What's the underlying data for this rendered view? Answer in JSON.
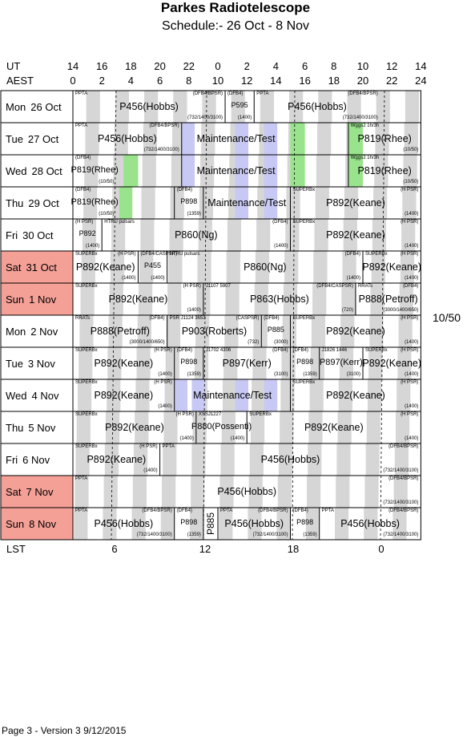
{
  "header": {
    "title": "Parkes Radiotelescope",
    "subtitle": "Schedule:- 26 Oct - 8  Nov"
  },
  "axes": {
    "ut_label": "UT",
    "aest_label": "AEST",
    "lst_label": "LST",
    "ut_ticks": [
      "14",
      "16",
      "18",
      "20",
      "22",
      "0",
      "2",
      "4",
      "6",
      "8",
      "10",
      "12",
      "14"
    ],
    "aest_ticks": [
      "0",
      "2",
      "4",
      "6",
      "8",
      "10",
      "12",
      "14",
      "16",
      "18",
      "20",
      "22",
      "24"
    ],
    "lst_ticks": [
      "6",
      "12",
      "18",
      "0"
    ]
  },
  "colors": {
    "weekend": "#f4a096",
    "maintenance": "#c8c8f5",
    "green": "#98e38c",
    "lst_stripe": "#d6d6d6"
  },
  "days": [
    {
      "name": "Mon",
      "date": "26 Oct",
      "weekend": false
    },
    {
      "name": "Tue",
      "date": "27 Oct",
      "weekend": false
    },
    {
      "name": "Wed",
      "date": "28 Oct",
      "weekend": false
    },
    {
      "name": "Thu",
      "date": "29 Oct",
      "weekend": false
    },
    {
      "name": "Fri",
      "date": "30 Oct",
      "weekend": false
    },
    {
      "name": "Sat",
      "date": "31 Oct",
      "weekend": true
    },
    {
      "name": "Sun",
      "date": "1  Nov",
      "weekend": true
    },
    {
      "name": "Mon",
      "date": "2  Nov",
      "weekend": false
    },
    {
      "name": "Tue",
      "date": "3  Nov",
      "weekend": false
    },
    {
      "name": "Wed",
      "date": "4  Nov",
      "weekend": false
    },
    {
      "name": "Thu",
      "date": "5  Nov",
      "weekend": false
    },
    {
      "name": "Fri",
      "date": "6  Nov",
      "weekend": false
    },
    {
      "name": "Sat",
      "date": "7  Nov",
      "weekend": true
    },
    {
      "name": "Sun",
      "date": "8  Nov",
      "weekend": true
    }
  ],
  "rows": [
    {
      "blocks": [
        {
          "start": 0,
          "end": 10.5,
          "label": "P456(Hobbs)",
          "tl": "PPTA",
          "br": "(732/1400/3100)",
          "tr": "(DFB4/BPSR)"
        },
        {
          "start": 10.5,
          "end": 12.5,
          "label": "P595",
          "tl": "(DFB4)",
          "br": "(1400)"
        },
        {
          "start": 12.5,
          "end": 21.2,
          "label": "P456(Hobbs)",
          "tl": "PPTA",
          "br": "(732/1400/3100)",
          "tr": "(DFB4/BPSR)"
        }
      ]
    },
    {
      "blocks": [
        {
          "start": 0,
          "end": 7.5,
          "label": "P456(Hobbs)",
          "tl": "PPTA",
          "tr": "(DFB4/BPSR)",
          "br": "(732/1400/3100)"
        },
        {
          "start": 7.5,
          "end": 15,
          "label": "Maintenance/Test"
        },
        {
          "start": 19,
          "end": 24,
          "label": "P819(Rhee)",
          "tl": "Wggs2 1h/3h",
          "br": "(10/50)"
        }
      ]
    },
    {
      "blocks": [
        {
          "start": 0,
          "end": 3,
          "label": "P819(Rhee)",
          "tl": "(DFB4)",
          "br": "(10/50)"
        },
        {
          "start": 7.5,
          "end": 15,
          "label": "Maintenance/Test"
        },
        {
          "start": 19,
          "end": 24,
          "label": "P819(Rhee)",
          "tl": "Wggs2 1h/3h",
          "br": "(10/50)"
        }
      ]
    },
    {
      "blocks": [
        {
          "start": 0,
          "end": 3,
          "label": "P819(Rhee)",
          "tl": "(DFB4)",
          "br": "(10/50)"
        },
        {
          "start": 7,
          "end": 9,
          "label": "P898",
          "tl": "(DFB4)",
          "br": "(1359)"
        },
        {
          "start": 9,
          "end": 15,
          "label": "Maintenance/Test"
        },
        {
          "start": 15,
          "end": 24,
          "label": "P892(Keane)",
          "tl": "SUPERBx",
          "tr": "(H PSR)",
          "br": "(1400)"
        }
      ]
    },
    {
      "blocks": [
        {
          "start": 0,
          "end": 2,
          "label": "P892",
          "tl": "(H PSR)",
          "br": "(1400)"
        },
        {
          "start": 2,
          "end": 15,
          "label": "P860(Ng)",
          "tl": "HTRU pulsars",
          "tr": "(DFB4)",
          "br": "(1400)"
        },
        {
          "start": 15,
          "end": 24,
          "label": "P892(Keane)",
          "tl": "SUPERBx",
          "tr": "(H PSR)",
          "br": "(1400)"
        }
      ]
    },
    {
      "blocks": [
        {
          "start": 0,
          "end": 4.5,
          "label": "P892(Keane)",
          "tl": "SUPERBx",
          "tr": "(H PSR)",
          "br": "(1400)"
        },
        {
          "start": 4.5,
          "end": 6.5,
          "label": "P455",
          "tl": "(DFB4/CASPSR)",
          "br": "(1400)"
        },
        {
          "start": 6.5,
          "end": 20,
          "label": "P860(Ng)",
          "tl": "HTRU pulsars",
          "tr": "(DFB4)",
          "br": "(1400)"
        },
        {
          "start": 20,
          "end": 24,
          "label": "P892(Keane)",
          "tl": "SUPERBx",
          "tr": "(H PSR)",
          "br": "(1400)"
        }
      ]
    },
    {
      "blocks": [
        {
          "start": 0,
          "end": 9,
          "label": "P892(Keane)",
          "tl": "SUPERBx",
          "tr": "(H PSR)",
          "br": "(1400)"
        },
        {
          "start": 9,
          "end": 19.5,
          "label": "P863(Hobbs)",
          "tl": "J1107 5907",
          "tr": "(DFB4/CASPSR)",
          "br": "(720)"
        },
        {
          "start": 19.5,
          "end": 24,
          "label": "P888(Petroff)",
          "tl": "RRATs",
          "tr": "(DFB4)",
          "br": "(3000/1400/650)"
        }
      ]
    },
    {
      "blocks": [
        {
          "start": 0,
          "end": 6.5,
          "label": "P888(Petroff)",
          "tl": "RRATs",
          "tr": "(DFB4)",
          "br": "(3000/1400/650)"
        },
        {
          "start": 6.5,
          "end": 13,
          "label": "P903(Roberts)",
          "tl": "PSR J1124 3653",
          "tr": "(CASPSR)",
          "br": "(732)"
        },
        {
          "start": 13,
          "end": 15,
          "label": "P885",
          "tl": "(DFB4)",
          "br": "(3000)"
        },
        {
          "start": 15,
          "end": 24,
          "label": "P892(Keane)",
          "tl": "SUPERBx",
          "tr": "(H PSR)",
          "br": "(1400)"
        }
      ]
    },
    {
      "blocks": [
        {
          "start": 0,
          "end": 7,
          "label": "P892(Keane)",
          "tl": "SUPERBx",
          "tr": "(H PSR)",
          "br": "(1400)"
        },
        {
          "start": 7,
          "end": 9,
          "label": "P898",
          "tl": "(DFB4)",
          "br": "(1359)"
        },
        {
          "start": 9,
          "end": 15,
          "label": "P897(Kerr)",
          "tl": "J1702 4306",
          "tr": "(DFB4)",
          "br": "(3100)"
        },
        {
          "start": 15,
          "end": 17,
          "label": "P898",
          "tl": "(DFB4)",
          "br": "(1359)"
        },
        {
          "start": 17,
          "end": 20,
          "label": "P897(Kerr)",
          "tl": "J1826 1446",
          "br": "(3100)"
        },
        {
          "start": 20,
          "end": 24,
          "label": "P892(Keane)",
          "tl": "SUPERBx",
          "tr": "(H PSR)",
          "br": "(1400)"
        }
      ]
    },
    {
      "blocks": [
        {
          "start": 0,
          "end": 7,
          "label": "P892(Keane)",
          "tl": "SUPERBx",
          "tr": "(H PSR)",
          "br": "(1400)"
        },
        {
          "start": 7,
          "end": 15,
          "label": "Maintenance/Test"
        },
        {
          "start": 15,
          "end": 24,
          "label": "P892(Keane)",
          "tl": "SUPERBx",
          "tr": "(H PSR)",
          "br": "(1400)"
        }
      ]
    },
    {
      "blocks": [
        {
          "start": 0,
          "end": 8.5,
          "label": "P892(Keane)",
          "tl": "SUPERBx",
          "tr": "(H PSR)",
          "br": "(1400)"
        },
        {
          "start": 8.5,
          "end": 12,
          "label": "P880(Possenti)",
          "tl": "XSSJ1227",
          "br": "(1400)"
        },
        {
          "start": 12,
          "end": 24,
          "label": "P892(Keane)",
          "tl": "SUPERBx",
          "tr": "(H PSR)",
          "br": "(1400)"
        }
      ]
    },
    {
      "blocks": [
        {
          "start": 0,
          "end": 6,
          "label": "P892(Keane)",
          "tl": "SUPERBx",
          "tr": "(H PSR)",
          "br": "(1400)"
        },
        {
          "start": 6,
          "end": 24,
          "label": "P456(Hobbs)",
          "tl": "PPTA",
          "tr": "(DFB4/BPSR)",
          "br": "(732/1400/3100)"
        }
      ]
    },
    {
      "blocks": [
        {
          "start": 0,
          "end": 24,
          "label": "P456(Hobbs)",
          "tl": "PPTA",
          "tr": "(DFB4/BPSR)",
          "br": "(732/1400/3100)"
        }
      ]
    },
    {
      "blocks": [
        {
          "start": 0,
          "end": 7,
          "label": "P456(Hobbs)",
          "tl": "PPTA",
          "tr": "(DFB4/BPSR)",
          "br": "(732/1400/3100)"
        },
        {
          "start": 7,
          "end": 9,
          "label": "P898",
          "tl": "(DFB4)",
          "br": "(1359)"
        },
        {
          "start": 9,
          "end": 10,
          "label": "P885",
          "vertical": true
        },
        {
          "start": 10,
          "end": 15,
          "label": "P456(Hobbs)",
          "tl": "PPTA",
          "tr": "(DFB4/BPSR)",
          "br": "(732/1400/3100)"
        },
        {
          "start": 15,
          "end": 17,
          "label": "P898",
          "tl": "(DFB4)",
          "br": "(1359)"
        },
        {
          "start": 17,
          "end": 24,
          "label": "P456(Hobbs)",
          "tl": "PPTA",
          "tr": "(DFB4/BPSR)",
          "br": "(732/1400/3100)"
        }
      ]
    }
  ],
  "side_note": "10/50",
  "footer": "Page 3 - Version 3  9/12/2015"
}
